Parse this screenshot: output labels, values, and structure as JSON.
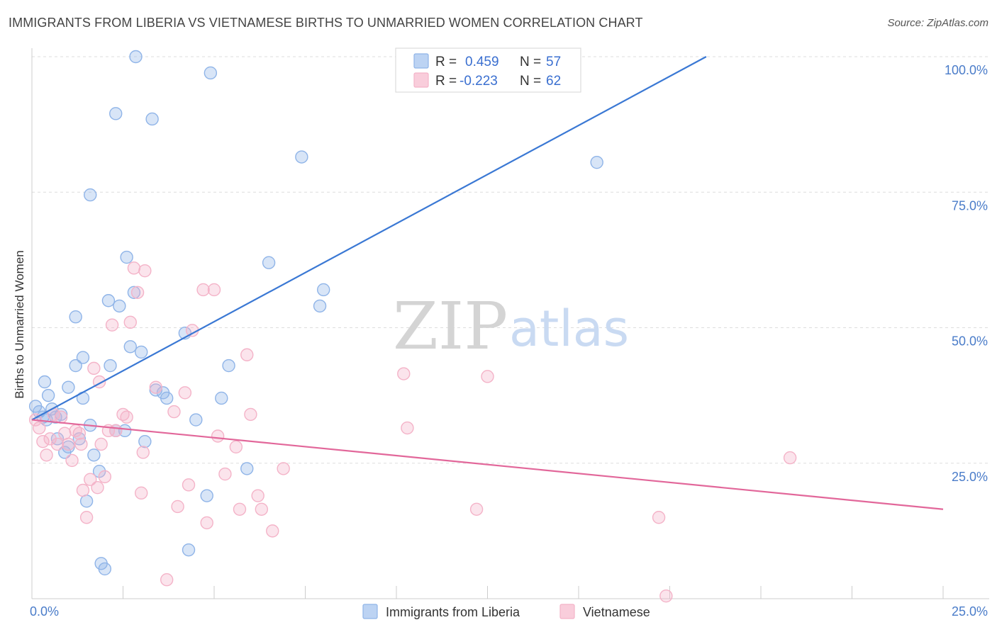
{
  "header": {
    "title": "IMMIGRANTS FROM LIBERIA VS VIETNAMESE BIRTHS TO UNMARRIED WOMEN CORRELATION CHART",
    "source": "Source: ZipAtlas.com"
  },
  "watermark": {
    "zip": "ZIP",
    "atlas": "atlas"
  },
  "chart_data": {
    "type": "scatter",
    "title": "IMMIGRANTS FROM LIBERIA VS VIETNAMESE BIRTHS TO UNMARRIED WOMEN CORRELATION CHART",
    "xlabel": "",
    "ylabel": "Births to Unmarried Women",
    "xlim": [
      0,
      25
    ],
    "ylim": [
      0,
      100
    ],
    "x_tick_labels": [
      "0.0%",
      "25.0%"
    ],
    "y_ticks": [
      25,
      50,
      75,
      100
    ],
    "y_tick_labels": [
      "25.0%",
      "50.0%",
      "75.0%",
      "100.0%"
    ],
    "grid": "horizontal dashed",
    "legend_position": "top-center",
    "series": [
      {
        "name": "Immigrants from Liberia",
        "color": "#8fb4e8",
        "line_color": "#3a78d4",
        "R": "0.459",
        "N": "57",
        "trend": [
          [
            0,
            33
          ],
          [
            18.5,
            100
          ]
        ],
        "points": [
          [
            0.1,
            35.5
          ],
          [
            0.2,
            34.5
          ],
          [
            0.3,
            33.5
          ],
          [
            0.4,
            33
          ],
          [
            0.35,
            40
          ],
          [
            0.45,
            37.5
          ],
          [
            0.55,
            35
          ],
          [
            0.65,
            33.5
          ],
          [
            0.7,
            29.5
          ],
          [
            0.9,
            27
          ],
          [
            1.0,
            39
          ],
          [
            1.0,
            28
          ],
          [
            0.8,
            34
          ],
          [
            1.2,
            52
          ],
          [
            1.2,
            43
          ],
          [
            1.3,
            29.5
          ],
          [
            1.4,
            44.5
          ],
          [
            1.4,
            37
          ],
          [
            1.6,
            74.5
          ],
          [
            1.6,
            32
          ],
          [
            1.7,
            26.5
          ],
          [
            1.5,
            18
          ],
          [
            1.85,
            23.5
          ],
          [
            1.9,
            6.5
          ],
          [
            2.0,
            5.5
          ],
          [
            2.1,
            55
          ],
          [
            2.15,
            43
          ],
          [
            2.3,
            89.5
          ],
          [
            2.4,
            54
          ],
          [
            2.3,
            31
          ],
          [
            2.55,
            31
          ],
          [
            2.6,
            63
          ],
          [
            2.7,
            46.5
          ],
          [
            2.8,
            56.5
          ],
          [
            2.85,
            100
          ],
          [
            3.0,
            45.5
          ],
          [
            3.1,
            29
          ],
          [
            3.3,
            88.5
          ],
          [
            3.4,
            38.5
          ],
          [
            3.6,
            38
          ],
          [
            3.7,
            37
          ],
          [
            4.2,
            49
          ],
          [
            4.3,
            9
          ],
          [
            4.5,
            33
          ],
          [
            4.8,
            19
          ],
          [
            4.9,
            97
          ],
          [
            5.2,
            37
          ],
          [
            5.4,
            43
          ],
          [
            5.9,
            24
          ],
          [
            6.5,
            62
          ],
          [
            7.4,
            81.5
          ],
          [
            7.9,
            54
          ],
          [
            8.0,
            57
          ],
          [
            11.2,
            100
          ],
          [
            15.5,
            80.5
          ]
        ]
      },
      {
        "name": "Vietnamese",
        "color": "#f4b3c8",
        "line_color": "#e2679a",
        "R": "-0.223",
        "N": "62",
        "trend": [
          [
            0,
            33
          ],
          [
            25,
            16.5
          ]
        ],
        "points": [
          [
            0.1,
            33
          ],
          [
            0.2,
            31.5
          ],
          [
            0.3,
            29
          ],
          [
            0.4,
            26.5
          ],
          [
            0.5,
            29.5
          ],
          [
            0.6,
            34
          ],
          [
            0.7,
            28.5
          ],
          [
            0.8,
            33.5
          ],
          [
            0.9,
            30.5
          ],
          [
            1.0,
            28.5
          ],
          [
            1.1,
            25.5
          ],
          [
            1.2,
            31
          ],
          [
            1.3,
            30.5
          ],
          [
            1.35,
            28.5
          ],
          [
            1.4,
            20
          ],
          [
            1.5,
            15
          ],
          [
            1.6,
            22
          ],
          [
            1.7,
            42.5
          ],
          [
            1.8,
            20.5
          ],
          [
            1.85,
            40
          ],
          [
            1.9,
            28.5
          ],
          [
            2.0,
            22.5
          ],
          [
            2.1,
            31
          ],
          [
            2.2,
            50.5
          ],
          [
            2.3,
            31
          ],
          [
            2.5,
            34
          ],
          [
            2.6,
            33.5
          ],
          [
            2.7,
            51
          ],
          [
            2.8,
            61
          ],
          [
            2.9,
            56.5
          ],
          [
            3.0,
            19.5
          ],
          [
            3.05,
            27
          ],
          [
            3.1,
            60.5
          ],
          [
            3.4,
            39
          ],
          [
            3.7,
            3.5
          ],
          [
            3.9,
            34.5
          ],
          [
            4.0,
            17
          ],
          [
            4.2,
            38
          ],
          [
            4.3,
            21
          ],
          [
            4.4,
            49.5
          ],
          [
            4.7,
            57
          ],
          [
            4.8,
            14
          ],
          [
            5.0,
            57
          ],
          [
            5.1,
            30
          ],
          [
            5.3,
            23
          ],
          [
            5.6,
            28
          ],
          [
            5.7,
            16.5
          ],
          [
            5.9,
            45
          ],
          [
            6.0,
            34
          ],
          [
            6.3,
            16.5
          ],
          [
            6.2,
            19
          ],
          [
            6.6,
            12.5
          ],
          [
            6.9,
            24
          ],
          [
            10.2,
            41.5
          ],
          [
            10.3,
            31.5
          ],
          [
            12.2,
            16.5
          ],
          [
            12.5,
            41
          ],
          [
            17.2,
            15
          ],
          [
            17.4,
            0.5
          ],
          [
            20.8,
            26
          ]
        ]
      }
    ]
  },
  "legend": {
    "r_label": "R =",
    "n_label": "N ="
  }
}
